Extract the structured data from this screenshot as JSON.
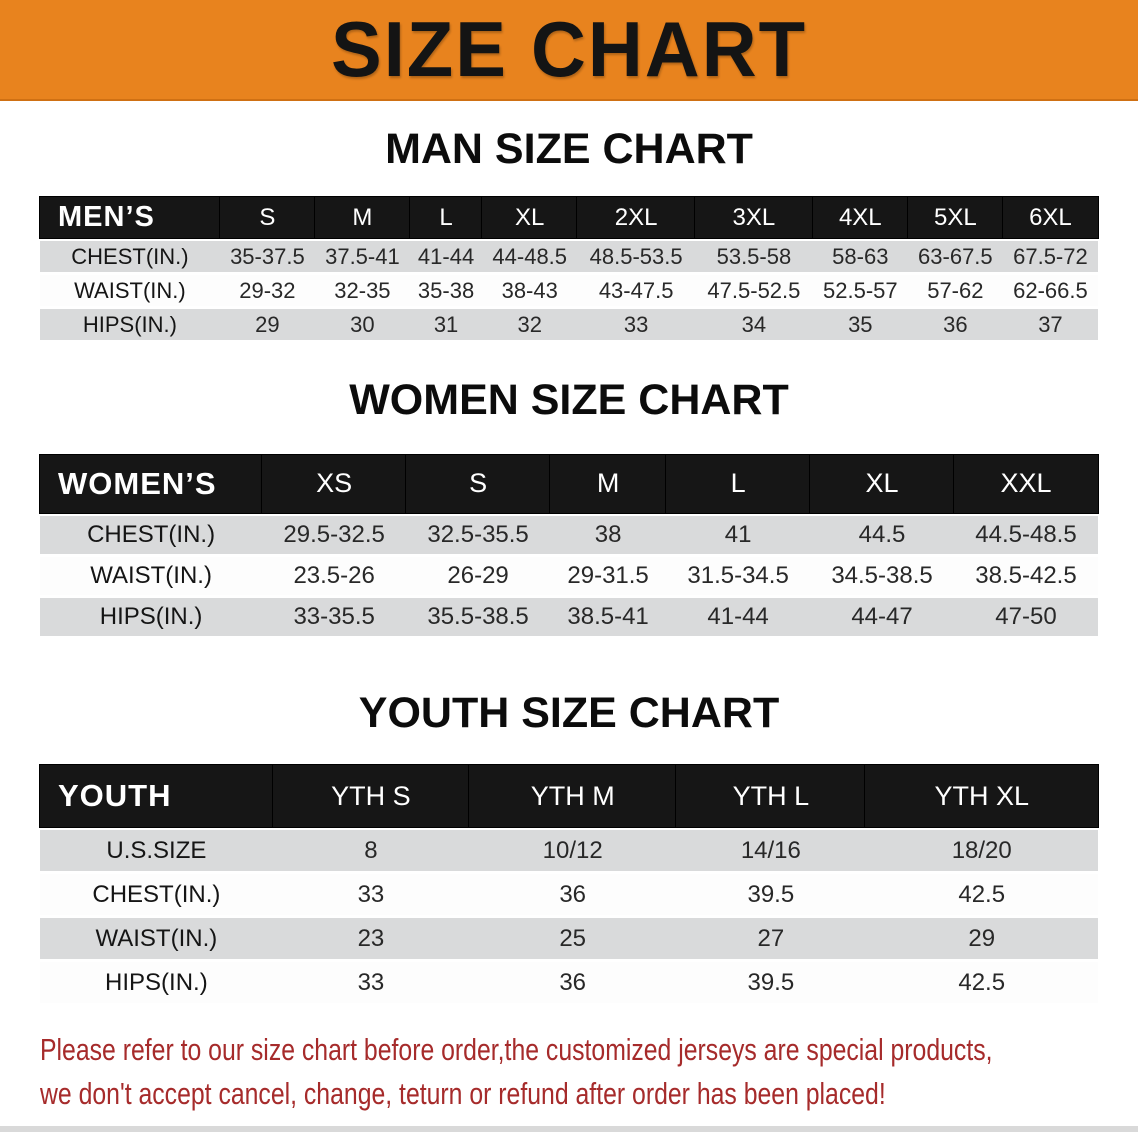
{
  "banner": {
    "title": "SIZE CHART",
    "bg_color": "#E8831E",
    "text_color": "#141414"
  },
  "sections": [
    {
      "title": "MAN SIZE CHART",
      "header_label": "MEN’S",
      "columns": [
        "S",
        "M",
        "L",
        "XL",
        "2XL",
        "3XL",
        "4XL",
        "5XL",
        "6XL"
      ],
      "rows": [
        {
          "label": "CHEST(IN.)",
          "values": [
            "35-37.5",
            "37.5-41",
            "41-44",
            "44-48.5",
            "48.5-53.5",
            "53.5-58",
            "58-63",
            "63-67.5",
            "67.5-72"
          ]
        },
        {
          "label": "WAIST(IN.)",
          "values": [
            "29-32",
            "32-35",
            "35-38",
            "38-43",
            "43-47.5",
            "47.5-52.5",
            "52.5-57",
            "57-62",
            "62-66.5"
          ]
        },
        {
          "label": "HIPS(IN.)",
          "values": [
            "29",
            "30",
            "31",
            "32",
            "33",
            "34",
            "35",
            "36",
            "37"
          ]
        }
      ]
    },
    {
      "title": "WOMEN SIZE CHART",
      "header_label": "WOMEN’S",
      "columns": [
        "XS",
        "S",
        "M",
        "L",
        "XL",
        "XXL"
      ],
      "rows": [
        {
          "label": "CHEST(IN.)",
          "values": [
            "29.5-32.5",
            "32.5-35.5",
            "38",
            "41",
            "44.5",
            "44.5-48.5"
          ]
        },
        {
          "label": "WAIST(IN.)",
          "values": [
            "23.5-26",
            "26-29",
            "29-31.5",
            "31.5-34.5",
            "34.5-38.5",
            "38.5-42.5"
          ]
        },
        {
          "label": "HIPS(IN.)",
          "values": [
            "33-35.5",
            "35.5-38.5",
            "38.5-41",
            "41-44",
            "44-47",
            "47-50"
          ]
        }
      ]
    },
    {
      "title": "YOUTH SIZE CHART",
      "header_label": "YOUTH",
      "columns": [
        "YTH S",
        "YTH M",
        "YTH L",
        "YTH XL"
      ],
      "rows": [
        {
          "label": "U.S.SIZE",
          "values": [
            "8",
            "10/12",
            "14/16",
            "18/20"
          ]
        },
        {
          "label": "CHEST(IN.)",
          "values": [
            "33",
            "36",
            "39.5",
            "42.5"
          ]
        },
        {
          "label": "WAIST(IN.)",
          "values": [
            "23",
            "25",
            "27",
            "29"
          ]
        },
        {
          "label": "HIPS(IN.)",
          "values": [
            "33",
            "36",
            "39.5",
            "42.5"
          ]
        }
      ]
    }
  ],
  "note": {
    "line1": "Please refer to our size chart before order,the customized jerseys are special products,",
    "line2": "we don't accept cancel, change, teturn or refund after order has been placed!",
    "text_color": "#A62B2B"
  },
  "colors": {
    "header_bar": "#161616",
    "row_gray": "#d9dadb",
    "row_white": "#fdfdfd"
  }
}
